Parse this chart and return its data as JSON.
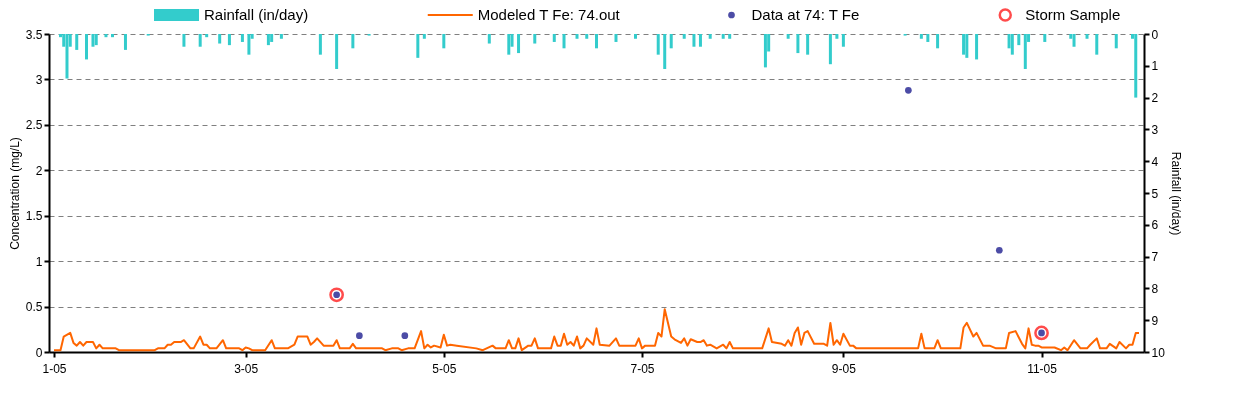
{
  "chart_data": {
    "type": "line",
    "ylabel": "Concentration (mg/L)",
    "y2label": "Rainfall (in/day)",
    "xlim": [
      "2005-01-01",
      "2005-12-01"
    ],
    "xticks": [
      {
        "value": "2005-01-01",
        "label": "1-05"
      },
      {
        "value": "2005-03-01",
        "label": "3-05"
      },
      {
        "value": "2005-05-01",
        "label": "5-05"
      },
      {
        "value": "2005-07-01",
        "label": "7-05"
      },
      {
        "value": "2005-09-01",
        "label": "9-05"
      },
      {
        "value": "2005-11-01",
        "label": "11-05"
      }
    ],
    "ylim": [
      0,
      3.5
    ],
    "yticks": [
      0,
      0.5,
      1,
      1.5,
      2,
      2.5,
      3,
      3.5
    ],
    "y2lim": [
      10,
      0
    ],
    "y2ticks": [
      0,
      1,
      2,
      3,
      4,
      5,
      6,
      7,
      8,
      9,
      10
    ],
    "grid": "y",
    "legend": "top",
    "series": [
      {
        "name": "Rainfall (in/day)",
        "type": "bar",
        "axis": "y2",
        "color": "#33cccc",
        "x": [
          "2005-01-03",
          "2005-01-04",
          "2005-01-05",
          "2005-01-06",
          "2005-01-08",
          "2005-01-11",
          "2005-01-13",
          "2005-01-14",
          "2005-01-17",
          "2005-01-19",
          "2005-01-23",
          "2005-01-30",
          "2005-02-10",
          "2005-02-15",
          "2005-02-17",
          "2005-02-21",
          "2005-02-24",
          "2005-02-28",
          "2005-03-02",
          "2005-03-03",
          "2005-03-08",
          "2005-03-09",
          "2005-03-12",
          "2005-03-24",
          "2005-03-29",
          "2005-04-03",
          "2005-04-08",
          "2005-04-23",
          "2005-04-25",
          "2005-05-01",
          "2005-05-15",
          "2005-05-21",
          "2005-05-22",
          "2005-05-24",
          "2005-05-29",
          "2005-06-04",
          "2005-06-07",
          "2005-06-11",
          "2005-06-14",
          "2005-06-17",
          "2005-06-23",
          "2005-06-29",
          "2005-07-06",
          "2005-07-08",
          "2005-07-10",
          "2005-07-14",
          "2005-07-17",
          "2005-07-19",
          "2005-07-22",
          "2005-07-26",
          "2005-07-28",
          "2005-08-08",
          "2005-08-09",
          "2005-08-15",
          "2005-08-18",
          "2005-08-21",
          "2005-08-28",
          "2005-08-30",
          "2005-09-01",
          "2005-09-20",
          "2005-09-25",
          "2005-09-27",
          "2005-09-30",
          "2005-10-08",
          "2005-10-09",
          "2005-10-12",
          "2005-10-22",
          "2005-10-23",
          "2005-10-25",
          "2005-10-27",
          "2005-10-28",
          "2005-11-02",
          "2005-11-10",
          "2005-11-11",
          "2005-11-15",
          "2005-11-18",
          "2005-11-24",
          "2005-11-29",
          "2005-11-30"
        ],
        "values": [
          0.1,
          0.4,
          1.4,
          0.4,
          0.5,
          0.8,
          0.4,
          0.35,
          0.1,
          0.1,
          0.5,
          0.05,
          0.4,
          0.4,
          0.1,
          0.3,
          0.35,
          0.25,
          0.65,
          0.15,
          0.35,
          0.25,
          0.15,
          0.65,
          1.1,
          0.45,
          0.05,
          0.75,
          0.15,
          0.45,
          0.3,
          0.65,
          0.4,
          0.6,
          0.3,
          0.25,
          0.45,
          0.15,
          0.15,
          0.45,
          0.25,
          0.15,
          0.65,
          1.1,
          0.45,
          0.15,
          0.4,
          0.4,
          0.15,
          0.15,
          0.15,
          1.05,
          0.55,
          0.15,
          0.6,
          0.65,
          0.95,
          0.15,
          0.4,
          0.05,
          0.15,
          0.25,
          0.45,
          0.65,
          0.75,
          0.8,
          0.45,
          0.65,
          0.35,
          1.1,
          0.25,
          0.25,
          0.15,
          0.4,
          0.15,
          0.65,
          0.45,
          0.15,
          2.0
        ]
      },
      {
        "name": "Modeled T Fe: 74.out",
        "color": "#ff6600",
        "x": [
          "2005-01-01",
          "2005-01-03",
          "2005-01-04",
          "2005-01-06",
          "2005-01-07",
          "2005-01-08",
          "2005-01-09",
          "2005-01-10",
          "2005-01-11",
          "2005-01-13",
          "2005-01-14",
          "2005-01-15",
          "2005-01-16",
          "2005-01-20",
          "2005-01-21",
          "2005-02-01",
          "2005-02-02",
          "2005-02-04",
          "2005-02-05",
          "2005-02-06",
          "2005-02-07",
          "2005-02-09",
          "2005-02-10",
          "2005-02-12",
          "2005-02-13",
          "2005-02-15",
          "2005-02-16",
          "2005-02-17",
          "2005-02-18",
          "2005-02-20",
          "2005-02-22",
          "2005-02-23",
          "2005-02-27",
          "2005-02-28",
          "2005-03-01",
          "2005-03-02",
          "2005-03-03",
          "2005-03-07",
          "2005-03-09",
          "2005-03-10",
          "2005-03-14",
          "2005-03-16",
          "2005-03-17",
          "2005-03-20",
          "2005-03-21",
          "2005-03-22",
          "2005-03-23",
          "2005-03-25",
          "2005-03-28",
          "2005-03-29",
          "2005-03-30",
          "2005-04-02",
          "2005-04-03",
          "2005-04-04",
          "2005-04-12",
          "2005-04-13",
          "2005-04-15",
          "2005-04-17",
          "2005-04-18",
          "2005-04-20",
          "2005-04-22",
          "2005-04-24",
          "2005-04-25",
          "2005-04-26",
          "2005-04-27",
          "2005-04-28",
          "2005-04-30",
          "2005-05-01",
          "2005-05-02",
          "2005-05-03",
          "2005-05-05",
          "2005-05-11",
          "2005-05-13",
          "2005-05-16",
          "2005-05-17",
          "2005-05-20",
          "2005-05-21",
          "2005-05-22",
          "2005-05-23",
          "2005-05-24",
          "2005-05-25",
          "2005-05-27",
          "2005-05-28",
          "2005-05-29",
          "2005-05-30",
          "2005-06-03",
          "2005-06-04",
          "2005-06-05",
          "2005-06-06",
          "2005-06-07",
          "2005-06-08",
          "2005-06-09",
          "2005-06-10",
          "2005-06-11",
          "2005-06-12",
          "2005-06-13",
          "2005-06-14",
          "2005-06-16",
          "2005-06-17",
          "2005-06-18",
          "2005-06-21",
          "2005-06-23",
          "2005-06-24",
          "2005-06-29",
          "2005-06-30",
          "2005-07-01",
          "2005-07-02",
          "2005-07-05",
          "2005-07-06",
          "2005-07-07",
          "2005-07-08",
          "2005-07-10",
          "2005-07-11",
          "2005-07-13",
          "2005-07-14",
          "2005-07-15",
          "2005-07-16",
          "2005-07-18",
          "2005-07-19",
          "2005-07-20",
          "2005-07-21",
          "2005-07-22",
          "2005-07-24",
          "2005-07-26",
          "2005-07-27",
          "2005-07-28",
          "2005-07-29",
          "2005-08-07",
          "2005-08-09",
          "2005-08-10",
          "2005-08-13",
          "2005-08-14",
          "2005-08-15",
          "2005-08-16",
          "2005-08-17",
          "2005-08-18",
          "2005-08-19",
          "2005-08-20",
          "2005-08-21",
          "2005-08-23",
          "2005-08-26",
          "2005-08-27",
          "2005-08-28",
          "2005-08-29",
          "2005-08-30",
          "2005-08-31",
          "2005-09-01",
          "2005-09-03",
          "2005-09-04",
          "2005-09-05",
          "2005-09-24",
          "2005-09-25",
          "2005-09-26",
          "2005-09-29",
          "2005-09-30",
          "2005-10-01",
          "2005-10-07",
          "2005-10-08",
          "2005-10-09",
          "2005-10-11",
          "2005-10-12",
          "2005-10-14",
          "2005-10-16",
          "2005-10-18",
          "2005-10-21",
          "2005-10-22",
          "2005-10-24",
          "2005-10-26",
          "2005-10-27",
          "2005-10-28",
          "2005-10-29",
          "2005-10-30",
          "2005-10-31",
          "2005-11-01",
          "2005-11-05",
          "2005-11-07",
          "2005-11-08",
          "2005-11-09",
          "2005-11-11",
          "2005-11-13",
          "2005-11-15",
          "2005-11-16",
          "2005-11-18",
          "2005-11-19",
          "2005-11-21",
          "2005-11-22",
          "2005-11-24",
          "2005-11-25",
          "2005-11-27",
          "2005-11-28",
          "2005-11-29",
          "2005-11-30",
          "2005-12-01"
        ],
        "values": [
          0.02,
          0.02,
          0.17,
          0.21,
          0.1,
          0.07,
          0.11,
          0.07,
          0.11,
          0.11,
          0.04,
          0.08,
          0.04,
          0.04,
          0.02,
          0.02,
          0.04,
          0.04,
          0.08,
          0.08,
          0.11,
          0.11,
          0.13,
          0.04,
          0.04,
          0.17,
          0.08,
          0.08,
          0.04,
          0.04,
          0.13,
          0.04,
          0.04,
          0.02,
          0.05,
          0.04,
          0.02,
          0.02,
          0.13,
          0.04,
          0.04,
          0.08,
          0.17,
          0.17,
          0.08,
          0.11,
          0.15,
          0.07,
          0.07,
          0.13,
          0.04,
          0.04,
          0.09,
          0.04,
          0.04,
          0.02,
          0.04,
          0.04,
          0.02,
          0.04,
          0.04,
          0.23,
          0.04,
          0.08,
          0.05,
          0.07,
          0.05,
          0.19,
          0.07,
          0.08,
          0.07,
          0.04,
          0.02,
          0.07,
          0.04,
          0.04,
          0.13,
          0.04,
          0.04,
          0.15,
          0.02,
          0.07,
          0.07,
          0.15,
          0.04,
          0.04,
          0.17,
          0.07,
          0.07,
          0.2,
          0.08,
          0.11,
          0.07,
          0.17,
          0.04,
          0.07,
          0.15,
          0.08,
          0.26,
          0.08,
          0.07,
          0.15,
          0.07,
          0.07,
          0.15,
          0.04,
          0.07,
          0.07,
          0.21,
          0.17,
          0.47,
          0.17,
          0.14,
          0.1,
          0.15,
          0.07,
          0.14,
          0.11,
          0.11,
          0.13,
          0.07,
          0.08,
          0.04,
          0.08,
          0.04,
          0.11,
          0.04,
          0.04,
          0.26,
          0.11,
          0.09,
          0.07,
          0.13,
          0.07,
          0.21,
          0.27,
          0.08,
          0.21,
          0.23,
          0.09,
          0.09,
          0.07,
          0.32,
          0.08,
          0.13,
          0.08,
          0.2,
          0.07,
          0.07,
          0.04,
          0.04,
          0.2,
          0.04,
          0.04,
          0.13,
          0.04,
          0.04,
          0.27,
          0.32,
          0.17,
          0.21,
          0.07,
          0.07,
          0.04,
          0.04,
          0.21,
          0.23,
          0.09,
          0.04,
          0.26,
          0.08,
          0.07,
          0.07,
          0.05,
          0.05,
          0.02,
          0.05,
          0.02,
          0.13,
          0.04,
          0.04,
          0.08,
          0.15,
          0.04,
          0.04,
          0.09,
          0.04,
          0.11,
          0.04,
          0.08,
          0.08,
          0.21,
          0.21
        ]
      },
      {
        "name": "Data at 74: T Fe",
        "type": "scatter",
        "color": "#000080",
        "x": [
          "2005-03-29",
          "2005-04-05",
          "2005-04-19",
          "2005-09-21",
          "2005-10-19",
          "2005-11-01"
        ],
        "values": [
          0.63,
          0.18,
          0.18,
          2.88,
          1.12,
          0.21
        ]
      },
      {
        "name": "Storm Sample",
        "type": "scatter",
        "color": "#ff0000",
        "x": [
          "2005-03-29",
          "2005-11-01"
        ],
        "values": [
          0.63,
          0.21
        ]
      }
    ]
  }
}
